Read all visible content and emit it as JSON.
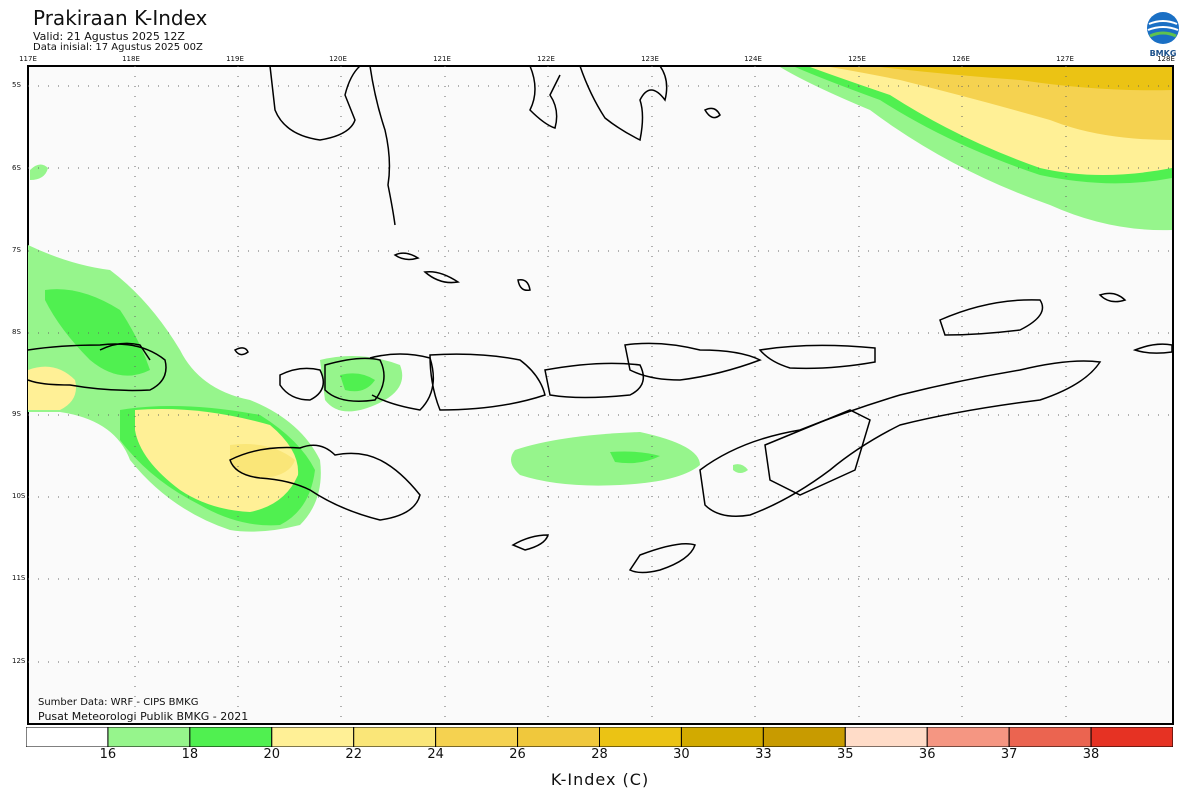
{
  "header": {
    "title": "Prakiraan K-Index",
    "valid": "Valid: 21 Agustus 2025 12Z",
    "initial": "Data inisial: 17 Agustus 2025 00Z"
  },
  "logo": {
    "text": "BMKG"
  },
  "axes": {
    "lon_labels": [
      "117E",
      "118E",
      "119E",
      "120E",
      "121E",
      "122E",
      "123E",
      "124E",
      "125E",
      "126E",
      "127E",
      "128E"
    ],
    "lat_labels": [
      "5S",
      "6S",
      "7S",
      "8S",
      "9S",
      "10S",
      "11S",
      "12S"
    ]
  },
  "credits": {
    "source": "Sumber Data: WRF - CIPS BMKG",
    "org": "Pusat Meteorologi Publik BMKG - 2021"
  },
  "legend": {
    "title": "K-Index (C)",
    "labels": [
      "16",
      "18",
      "20",
      "22",
      "24",
      "26",
      "28",
      "30",
      "33",
      "35",
      "36",
      "37",
      "38"
    ],
    "colors": [
      "#ffffff",
      "#96f58c",
      "#50f050",
      "#fff096",
      "#fae678",
      "#f5d250",
      "#f0c83c",
      "#ebc314",
      "#d2aa00",
      "#c89b00",
      "#ffdcc8",
      "#f59682",
      "#eb6450",
      "#e63223"
    ]
  }
}
